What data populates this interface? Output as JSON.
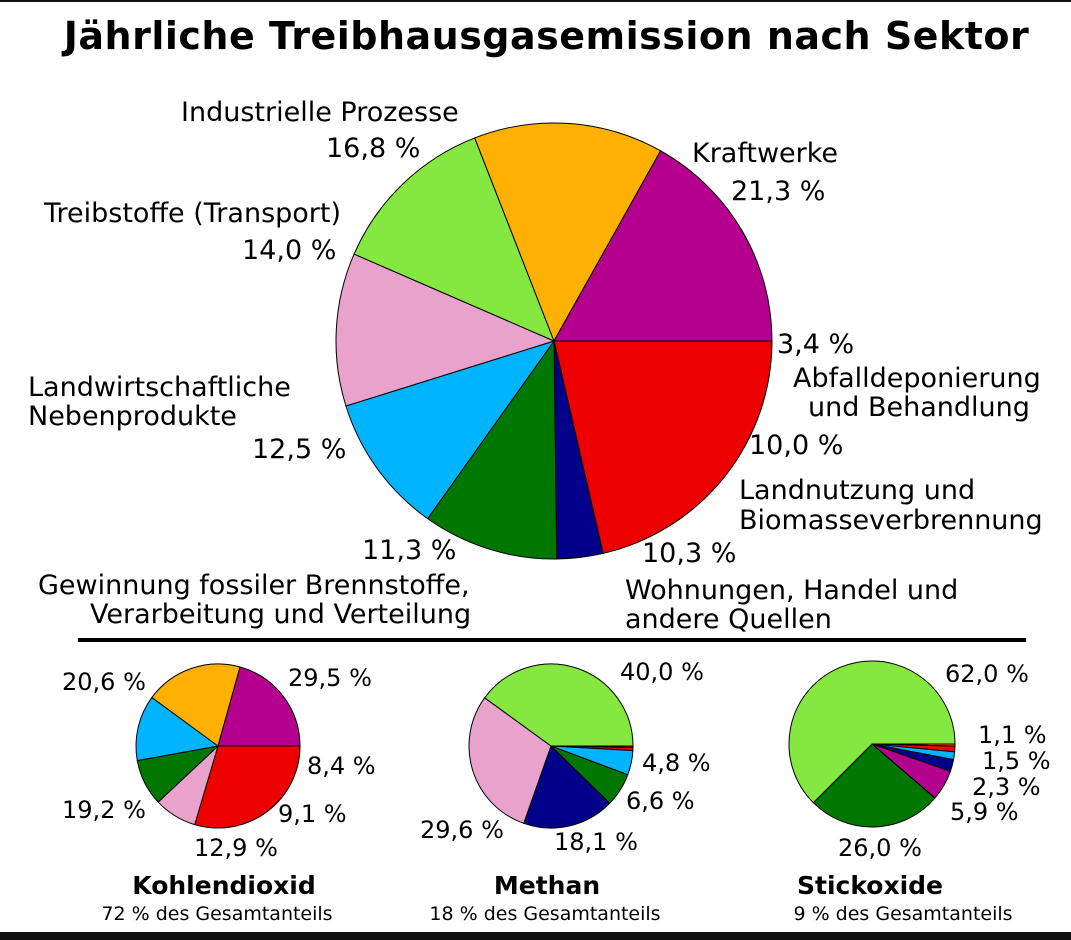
{
  "title": "Jährliche Treibhausgasemission nach Sektor",
  "legend": {
    "power": "Kraftwerke",
    "industry": "Industrielle Prozesse",
    "transport": "Treibstoffe (Transport)",
    "agri": [
      "Landwirtschaftliche",
      "Nebenprodukte"
    ],
    "fossil": [
      "Gewinnung fossiler Brennstoffe,",
      "Verarbeitung und Verteilung"
    ],
    "residential": [
      "Wohnungen, Handel und",
      "andere Quellen"
    ],
    "landuse": [
      "Landnutzung und",
      "Biomasseverbrennung"
    ],
    "waste": [
      "Abfalldeponierung",
      "und Behandlung"
    ]
  },
  "colors": {
    "power": "#ee0000",
    "industry": "#b5008f",
    "transport": "#ffb000",
    "agri": "#85e841",
    "fossil": "#e8a2cb",
    "residential": "#00b4ff",
    "landuse": "#007700",
    "waste": "#00008b",
    "other": "#ff6a00"
  },
  "chart_data": [
    {
      "type": "pie",
      "title": "Jährliche Treibhausgasemission nach Sektor",
      "slices": [
        {
          "key": "power",
          "value": 21.3,
          "label": "21,3 %"
        },
        {
          "key": "waste",
          "value": 3.4,
          "label": "3,4 %"
        },
        {
          "key": "landuse",
          "value": 10.0,
          "label": "10,0 %"
        },
        {
          "key": "residential",
          "value": 10.3,
          "label": "10,3 %"
        },
        {
          "key": "fossil",
          "value": 11.3,
          "label": "11,3 %"
        },
        {
          "key": "agri",
          "value": 12.5,
          "label": "12,5 %"
        },
        {
          "key": "transport",
          "value": 14.0,
          "label": "14,0 %"
        },
        {
          "key": "industry",
          "value": 16.8,
          "label": "16,8 %"
        }
      ]
    },
    {
      "type": "pie",
      "title": "Kohlendioxid",
      "subtitle": "72 % des Gesamtanteils",
      "slices": [
        {
          "key": "power",
          "value": 29.5,
          "label": "29,5 %"
        },
        {
          "key": "fossil",
          "value": 8.4,
          "label": "8,4 %"
        },
        {
          "key": "landuse",
          "value": 9.1,
          "label": "9,1 %"
        },
        {
          "key": "residential",
          "value": 12.9,
          "label": "12,9 %"
        },
        {
          "key": "transport",
          "value": 19.2,
          "label": "19,2 %"
        },
        {
          "key": "industry",
          "value": 20.6,
          "label": "20,6 %"
        }
      ]
    },
    {
      "type": "pie",
      "title": "Methan",
      "subtitle": "18 % des Gesamtanteils",
      "slices": [
        {
          "key": "industry",
          "value": 0.3,
          "label": ""
        },
        {
          "key": "power",
          "value": 0.6,
          "label": ""
        },
        {
          "key": "residential",
          "value": 4.8,
          "label": "4,8 %"
        },
        {
          "key": "landuse",
          "value": 6.6,
          "label": "6,6 %"
        },
        {
          "key": "waste",
          "value": 18.1,
          "label": "18,1 %"
        },
        {
          "key": "fossil",
          "value": 29.6,
          "label": "29,6 %"
        },
        {
          "key": "agri",
          "value": 40.0,
          "label": "40,0 %"
        }
      ]
    },
    {
      "type": "pie",
      "title": "Stickoxide",
      "subtitle": "9 % des Gesamtanteils",
      "slices": [
        {
          "key": "other",
          "value": 0.4,
          "label": ""
        },
        {
          "key": "power",
          "value": 1.1,
          "label": "1,1 %"
        },
        {
          "key": "residential",
          "value": 1.5,
          "label": "1,5 %"
        },
        {
          "key": "waste",
          "value": 2.3,
          "label": "2,3 %"
        },
        {
          "key": "industry",
          "value": 5.9,
          "label": "5,9 %"
        },
        {
          "key": "landuse",
          "value": 26.0,
          "label": "26,0 %"
        },
        {
          "key": "agri",
          "value": 62.0,
          "label": "62,0 %"
        }
      ]
    }
  ]
}
